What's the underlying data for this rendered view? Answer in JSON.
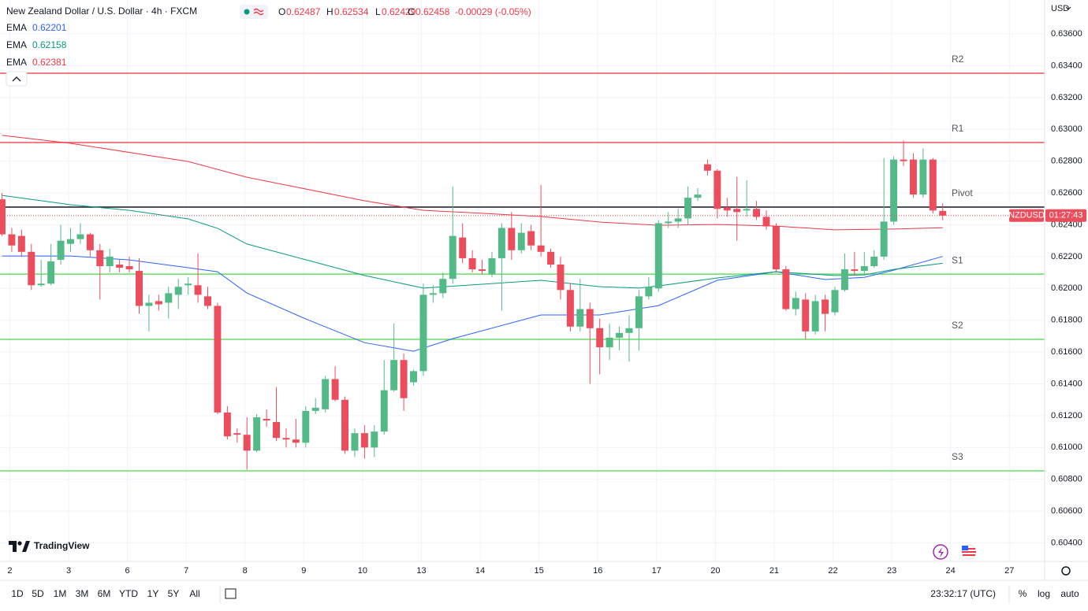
{
  "header": {
    "title": "New Zealand Dollar / U.S. Dollar · 4h · FXCM",
    "ohlc_labels": [
      "O",
      "H",
      "L",
      "C"
    ],
    "change": "-0.00029 (-0.05%)"
  },
  "chart_data": {
    "type": "candlestick",
    "currency": "USD",
    "candles": {
      "open": [
        0.6256,
        0.6234,
        0.6233,
        0.6223,
        0.6202,
        0.6203,
        0.6218,
        0.6228,
        0.6231,
        0.6234,
        0.6224,
        0.6214,
        0.6215,
        0.6214,
        0.6211,
        0.6189,
        0.6192,
        0.6191,
        0.6196,
        0.6202,
        0.6202,
        0.6195,
        0.6189,
        0.6122,
        0.6109,
        0.6108,
        0.6098,
        0.6118,
        0.6116,
        0.6106,
        0.6105,
        0.6103,
        0.6123,
        0.6124,
        0.6143,
        0.613,
        0.6098,
        0.6109,
        0.61,
        0.611,
        0.6136,
        0.6155,
        0.6141,
        0.6148,
        0.6196,
        0.6197,
        0.6206,
        0.6232,
        0.6219,
        0.6212,
        0.6209,
        0.6219,
        0.6238,
        0.6224,
        0.6236,
        0.6227,
        0.6223,
        0.6215,
        0.6199,
        0.6176,
        0.6187,
        0.6175,
        0.6163,
        0.6169,
        0.6172,
        0.6175,
        0.6195,
        0.62,
        0.6241,
        0.6242,
        0.6244,
        0.6257,
        0.6278,
        0.6274,
        0.6251,
        0.625,
        0.6249,
        0.625,
        0.6245,
        0.6239,
        0.6212,
        0.6187,
        0.6193,
        0.6173,
        0.6193,
        0.6185,
        0.6199,
        0.6212,
        0.6211,
        0.6214,
        0.622,
        0.6242,
        0.6281,
        0.6281,
        0.6259,
        0.6281,
        0.62487
      ],
      "high": [
        0.626,
        0.6238,
        0.6237,
        0.6228,
        0.6218,
        0.6228,
        0.624,
        0.6238,
        0.6241,
        0.6235,
        0.6228,
        0.6225,
        0.6218,
        0.622,
        0.6219,
        0.6196,
        0.6196,
        0.6201,
        0.6206,
        0.6207,
        0.6222,
        0.6201,
        0.6191,
        0.6126,
        0.6112,
        0.6119,
        0.6121,
        0.6124,
        0.6138,
        0.6112,
        0.6118,
        0.6126,
        0.6131,
        0.6145,
        0.6151,
        0.6132,
        0.6112,
        0.6114,
        0.6114,
        0.6155,
        0.6178,
        0.6159,
        0.6149,
        0.6203,
        0.6202,
        0.621,
        0.6264,
        0.6241,
        0.6224,
        0.6218,
        0.6223,
        0.6241,
        0.6248,
        0.6241,
        0.624,
        0.6265,
        0.6225,
        0.622,
        0.6203,
        0.6206,
        0.6191,
        0.6181,
        0.6178,
        0.6176,
        0.6183,
        0.6199,
        0.6207,
        0.6243,
        0.6248,
        0.625,
        0.6264,
        0.6263,
        0.6281,
        0.6275,
        0.6257,
        0.627,
        0.6268,
        0.6255,
        0.6249,
        0.6241,
        0.6214,
        0.6198,
        0.6197,
        0.6196,
        0.6196,
        0.6201,
        0.6222,
        0.6223,
        0.6223,
        0.6224,
        0.6282,
        0.6283,
        0.6293,
        0.6285,
        0.6288,
        0.6282,
        0.62534
      ],
      "low": [
        0.6233,
        0.6223,
        0.622,
        0.6199,
        0.6201,
        0.6202,
        0.6215,
        0.6223,
        0.6228,
        0.622,
        0.6193,
        0.621,
        0.621,
        0.621,
        0.6184,
        0.6173,
        0.6186,
        0.6181,
        0.6187,
        0.6196,
        0.6191,
        0.6187,
        0.6121,
        0.6105,
        0.6103,
        0.6086,
        0.6097,
        0.6113,
        0.6104,
        0.61,
        0.61,
        0.61,
        0.6121,
        0.6122,
        0.6129,
        0.6096,
        0.6094,
        0.6093,
        0.6094,
        0.6108,
        0.6135,
        0.6123,
        0.6139,
        0.6145,
        0.6191,
        0.6194,
        0.6203,
        0.6216,
        0.621,
        0.6209,
        0.6207,
        0.6186,
        0.6218,
        0.6222,
        0.6224,
        0.622,
        0.6213,
        0.6193,
        0.6173,
        0.6173,
        0.614,
        0.6146,
        0.6155,
        0.6161,
        0.6154,
        0.6161,
        0.6193,
        0.6198,
        0.6238,
        0.6238,
        0.624,
        0.6255,
        0.6271,
        0.6244,
        0.6245,
        0.623,
        0.6245,
        0.6243,
        0.6237,
        0.621,
        0.6186,
        0.6183,
        0.6168,
        0.6171,
        0.6173,
        0.6183,
        0.6198,
        0.6208,
        0.6209,
        0.6213,
        0.6218,
        0.624,
        0.6277,
        0.6257,
        0.6257,
        0.6247,
        0.62429
      ],
      "close": [
        0.6234,
        0.6227,
        0.6223,
        0.6202,
        0.6203,
        0.6217,
        0.623,
        0.6231,
        0.6234,
        0.6224,
        0.6214,
        0.622,
        0.6213,
        0.6212,
        0.6189,
        0.6191,
        0.619,
        0.6197,
        0.6201,
        0.6203,
        0.6196,
        0.6189,
        0.6122,
        0.6107,
        0.6108,
        0.6098,
        0.6119,
        0.6117,
        0.6106,
        0.6105,
        0.6103,
        0.6123,
        0.6125,
        0.6143,
        0.613,
        0.6098,
        0.6109,
        0.61,
        0.611,
        0.6136,
        0.6155,
        0.6131,
        0.6148,
        0.6196,
        0.6197,
        0.6206,
        0.6233,
        0.6219,
        0.6212,
        0.6211,
        0.6219,
        0.6238,
        0.6224,
        0.6235,
        0.6227,
        0.6223,
        0.6215,
        0.6199,
        0.6176,
        0.6187,
        0.6175,
        0.6163,
        0.6169,
        0.6172,
        0.6175,
        0.6195,
        0.6201,
        0.6241,
        0.6242,
        0.6244,
        0.6257,
        0.6259,
        0.6274,
        0.625,
        0.6249,
        0.6248,
        0.625,
        0.6245,
        0.6239,
        0.6212,
        0.6187,
        0.6194,
        0.6173,
        0.6192,
        0.6184,
        0.6199,
        0.6212,
        0.6211,
        0.6214,
        0.622,
        0.6242,
        0.6281,
        0.628,
        0.6259,
        0.6281,
        0.6249,
        0.62458
      ]
    },
    "up_color": "#53b987",
    "down_color": "#eb4d5c",
    "lines": [
      {
        "name": "EMA",
        "color": "#2962ff",
        "x": [
          0,
          7,
          13,
          19,
          22,
          25,
          31,
          37,
          42,
          46,
          55,
          61,
          67,
          73,
          79,
          84,
          88,
          91,
          96
        ],
        "values": [
          0.62204,
          0.62204,
          0.62179,
          0.6213,
          0.62105,
          0.61971,
          0.61808,
          0.61659,
          0.61605,
          0.61684,
          0.61833,
          0.61833,
          0.61892,
          0.62051,
          0.62105,
          0.62056,
          0.6207,
          0.62115,
          0.62201
        ]
      },
      {
        "name": "EMA",
        "color": "#089981",
        "x": [
          0,
          7,
          13,
          19,
          22,
          25,
          31,
          37,
          43,
          49,
          55,
          61,
          65,
          67,
          73,
          79,
          85,
          88,
          91,
          96
        ],
        "values": [
          0.62585,
          0.62526,
          0.62491,
          0.62437,
          0.62378,
          0.62279,
          0.6218,
          0.62081,
          0.62002,
          0.62026,
          0.62051,
          0.62011,
          0.62002,
          0.62016,
          0.62066,
          0.62105,
          0.62081,
          0.62085,
          0.6212,
          0.62158
        ]
      },
      {
        "name": "EMA",
        "color": "#f23645",
        "x": [
          0,
          7,
          19,
          25,
          37,
          43,
          49,
          55,
          61,
          67,
          73,
          79,
          85,
          91,
          96
        ],
        "values": [
          0.62962,
          0.62912,
          0.62798,
          0.62699,
          0.62551,
          0.62491,
          0.62472,
          0.62452,
          0.62417,
          0.62397,
          0.62402,
          0.62392,
          0.62368,
          0.62373,
          0.62381
        ]
      }
    ],
    "levels": [
      {
        "name": "R2",
        "value": 0.63353,
        "color": "#f0525a"
      },
      {
        "name": "R1",
        "value": 0.62917,
        "color": "#f0525a"
      },
      {
        "name": "Pivot",
        "value": 0.62511,
        "color": "#131722"
      },
      {
        "name": "S1",
        "value": 0.6209,
        "color": "#66dd66"
      },
      {
        "name": "S2",
        "value": 0.6168,
        "color": "#66dd66"
      },
      {
        "name": "S3",
        "value": 0.60853,
        "color": "#66dd66"
      }
    ],
    "xlim": [
      -0.2,
      106.4
    ],
    "xticks": [
      {
        "value": 0.8,
        "label": "2"
      },
      {
        "value": 6.8,
        "label": "3"
      },
      {
        "value": 12.8,
        "label": "6"
      },
      {
        "value": 18.8,
        "label": "7"
      },
      {
        "value": 24.8,
        "label": "8"
      },
      {
        "value": 30.8,
        "label": "9"
      },
      {
        "value": 36.8,
        "label": "10"
      },
      {
        "value": 42.8,
        "label": "13"
      },
      {
        "value": 48.8,
        "label": "14"
      },
      {
        "value": 54.8,
        "label": "15"
      },
      {
        "value": 60.8,
        "label": "16"
      },
      {
        "value": 66.8,
        "label": "17"
      },
      {
        "value": 72.8,
        "label": "20"
      },
      {
        "value": 78.8,
        "label": "21"
      },
      {
        "value": 84.8,
        "label": "22"
      },
      {
        "value": 90.8,
        "label": "23"
      },
      {
        "value": 96.8,
        "label": "24"
      },
      {
        "value": 102.8,
        "label": "27"
      }
    ],
    "ylim": [
      0.60284,
      0.63813
    ],
    "yticks": [
      {
        "value": 0.604,
        "label": "0.60400"
      },
      {
        "value": 0.606,
        "label": "0.60600"
      },
      {
        "value": 0.608,
        "label": "0.60800"
      },
      {
        "value": 0.61,
        "label": "0.61000"
      },
      {
        "value": 0.612,
        "label": "0.61200"
      },
      {
        "value": 0.614,
        "label": "0.61400"
      },
      {
        "value": 0.616,
        "label": "0.61600"
      },
      {
        "value": 0.618,
        "label": "0.61800"
      },
      {
        "value": 0.62,
        "label": "0.62000"
      },
      {
        "value": 0.622,
        "label": "0.62200"
      },
      {
        "value": 0.624,
        "label": "0.62400"
      },
      {
        "value": 0.626,
        "label": "0.62600"
      },
      {
        "value": 0.628,
        "label": "0.62800"
      },
      {
        "value": 0.63,
        "label": "0.63000"
      },
      {
        "value": 0.632,
        "label": "0.63200"
      },
      {
        "value": 0.634,
        "label": "0.63400"
      },
      {
        "value": 0.636,
        "label": "0.63600"
      }
    ],
    "grid": true,
    "price_tag": {
      "symbol": "NZDUSD",
      "countdown": "01:27:43"
    }
  },
  "branding": "TradingView",
  "toolbar": {
    "ranges": [
      "1D",
      "5D",
      "1M",
      "3M",
      "6M",
      "YTD",
      "1Y",
      "5Y",
      "All"
    ],
    "time": "23:32:17 (UTC)",
    "options": [
      "%",
      "log",
      "auto"
    ]
  }
}
